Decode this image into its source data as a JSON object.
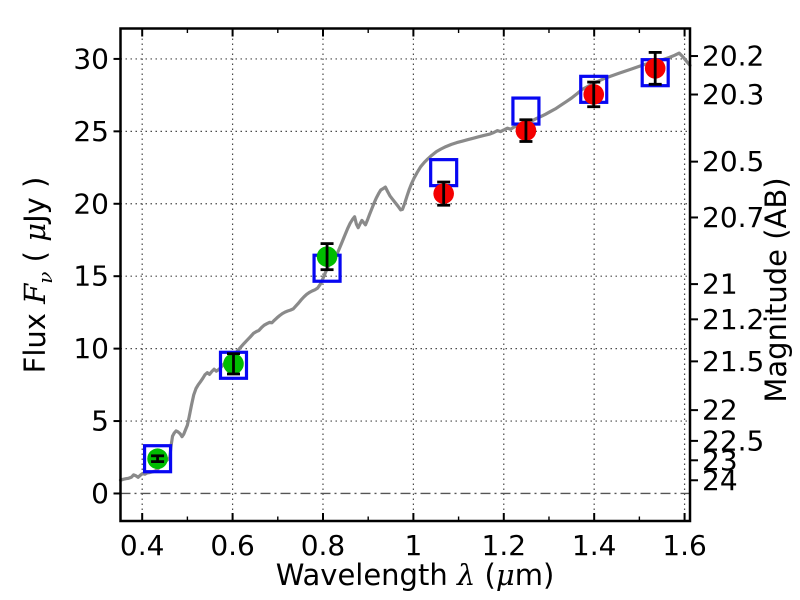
{
  "chart_data": {
    "type": "line",
    "title": "",
    "xlabel_parts": [
      [
        "Wavelength ",
        "text"
      ],
      [
        "λ",
        "math"
      ],
      [
        " (",
        "text"
      ],
      [
        "μ",
        "math"
      ],
      [
        "m)",
        "text"
      ]
    ],
    "ylabel_left_parts": [
      [
        "Flux ",
        "text"
      ],
      [
        "F",
        "math"
      ],
      [
        "ν",
        "mathsub"
      ],
      [
        " ( ",
        "text"
      ],
      [
        "μ",
        "math"
      ],
      [
        "Jy )",
        "text"
      ]
    ],
    "ylabel_right": "Magnitude (AB)",
    "xlim": [
      0.352,
      1.612
    ],
    "ylim_flux": [
      -1.9,
      32.1
    ],
    "x_tick_values": [
      0.4,
      0.6,
      0.8,
      1.0,
      1.2,
      1.4,
      1.6
    ],
    "x_tick_labels": [
      "0.4",
      "0.6",
      "0.8",
      "1",
      "1.2",
      "1.4",
      "1.6"
    ],
    "x_minor_tick_values": [
      0.5,
      0.7,
      0.9,
      1.1,
      1.3,
      1.5
    ],
    "y_tick_values": [
      0,
      5,
      10,
      15,
      20,
      25,
      30
    ],
    "y_tick_labels": [
      "0",
      "5",
      "10",
      "15",
      "20",
      "25",
      "30"
    ],
    "mag_tick_values": [
      20.2,
      20.3,
      20.5,
      20.7,
      21,
      21.2,
      21.5,
      22,
      22.5,
      23,
      24
    ],
    "mag_tick_labels": [
      "20.2",
      "20.3",
      "20.5",
      "20.7",
      "21",
      "21.2",
      "21.5",
      "22",
      "22.5",
      "23",
      "24"
    ],
    "ab_zeropoint": 23.9,
    "grid": true,
    "zero_line_flux": 0,
    "colors": {
      "spectrum": "#8a8a8a",
      "observed_optical": "#00bd00",
      "observed_ir": "#f40000",
      "model": "#0707f2",
      "errorbar": "#000000",
      "grid": "#4a4a4a",
      "axis": "#000000"
    },
    "series": [
      {
        "name": "model spectrum",
        "kind": "line",
        "color_key": "spectrum",
        "points": [
          [
            0.352,
            0.92
          ],
          [
            0.358,
            0.98
          ],
          [
            0.364,
            1.02
          ],
          [
            0.37,
            1.05
          ],
          [
            0.376,
            1.12
          ],
          [
            0.381,
            1.28
          ],
          [
            0.386,
            1.22
          ],
          [
            0.391,
            1.12
          ],
          [
            0.396,
            1.26
          ],
          [
            0.401,
            1.38
          ],
          [
            0.406,
            1.33
          ],
          [
            0.411,
            1.42
          ],
          [
            0.417,
            1.45
          ],
          [
            0.423,
            1.5
          ],
          [
            0.429,
            1.55
          ],
          [
            0.434,
            1.68
          ],
          [
            0.44,
            1.88
          ],
          [
            0.446,
            2.05
          ],
          [
            0.452,
            2.22
          ],
          [
            0.457,
            2.35
          ],
          [
            0.461,
            2.5
          ],
          [
            0.464,
            3.3
          ],
          [
            0.467,
            3.95
          ],
          [
            0.471,
            4.18
          ],
          [
            0.475,
            4.32
          ],
          [
            0.479,
            4.26
          ],
          [
            0.484,
            4.12
          ],
          [
            0.488,
            3.92
          ],
          [
            0.492,
            4.1
          ],
          [
            0.496,
            4.42
          ],
          [
            0.5,
            4.72
          ],
          [
            0.504,
            5.3
          ],
          [
            0.509,
            6.1
          ],
          [
            0.514,
            6.8
          ],
          [
            0.519,
            7.25
          ],
          [
            0.524,
            7.5
          ],
          [
            0.529,
            7.72
          ],
          [
            0.534,
            7.95
          ],
          [
            0.539,
            8.2
          ],
          [
            0.544,
            8.34
          ],
          [
            0.549,
            8.22
          ],
          [
            0.554,
            8.42
          ],
          [
            0.559,
            8.58
          ],
          [
            0.564,
            8.44
          ],
          [
            0.569,
            8.55
          ],
          [
            0.574,
            8.7
          ],
          [
            0.58,
            8.92
          ],
          [
            0.586,
            9.1
          ],
          [
            0.592,
            9.28
          ],
          [
            0.598,
            9.42
          ],
          [
            0.604,
            9.6
          ],
          [
            0.611,
            9.85
          ],
          [
            0.618,
            10.1
          ],
          [
            0.625,
            10.35
          ],
          [
            0.632,
            10.58
          ],
          [
            0.639,
            10.8
          ],
          [
            0.646,
            11.05
          ],
          [
            0.653,
            11.18
          ],
          [
            0.658,
            11.25
          ],
          [
            0.664,
            11.45
          ],
          [
            0.67,
            11.62
          ],
          [
            0.676,
            11.72
          ],
          [
            0.682,
            11.82
          ],
          [
            0.687,
            11.78
          ],
          [
            0.692,
            11.95
          ],
          [
            0.698,
            12.12
          ],
          [
            0.704,
            12.28
          ],
          [
            0.71,
            12.42
          ],
          [
            0.716,
            12.52
          ],
          [
            0.722,
            12.6
          ],
          [
            0.728,
            12.66
          ],
          [
            0.734,
            12.74
          ],
          [
            0.74,
            12.95
          ],
          [
            0.746,
            13.15
          ],
          [
            0.752,
            13.38
          ],
          [
            0.758,
            13.58
          ],
          [
            0.764,
            13.75
          ],
          [
            0.77,
            13.88
          ],
          [
            0.776,
            13.98
          ],
          [
            0.782,
            14.06
          ],
          [
            0.788,
            14.18
          ],
          [
            0.794,
            14.45
          ],
          [
            0.8,
            14.85
          ],
          [
            0.806,
            15.3
          ],
          [
            0.812,
            15.7
          ],
          [
            0.818,
            15.92
          ],
          [
            0.824,
            16.1
          ],
          [
            0.83,
            16.45
          ],
          [
            0.836,
            16.9
          ],
          [
            0.842,
            17.35
          ],
          [
            0.848,
            17.8
          ],
          [
            0.854,
            18.25
          ],
          [
            0.86,
            18.65
          ],
          [
            0.866,
            18.95
          ],
          [
            0.87,
            19.1
          ],
          [
            0.874,
            18.6
          ],
          [
            0.878,
            18.35
          ],
          [
            0.882,
            18.62
          ],
          [
            0.886,
            18.85
          ],
          [
            0.89,
            18.7
          ],
          [
            0.894,
            18.55
          ],
          [
            0.898,
            18.85
          ],
          [
            0.903,
            19.25
          ],
          [
            0.908,
            19.65
          ],
          [
            0.913,
            20.05
          ],
          [
            0.918,
            20.4
          ],
          [
            0.923,
            20.7
          ],
          [
            0.928,
            20.95
          ],
          [
            0.933,
            21.05
          ],
          [
            0.938,
            21.15
          ],
          [
            0.943,
            20.85
          ],
          [
            0.948,
            20.55
          ],
          [
            0.953,
            20.35
          ],
          [
            0.958,
            20.15
          ],
          [
            0.963,
            19.95
          ],
          [
            0.968,
            19.75
          ],
          [
            0.972,
            19.58
          ],
          [
            0.976,
            19.62
          ],
          [
            0.981,
            20.05
          ],
          [
            0.986,
            20.55
          ],
          [
            0.991,
            21.0
          ],
          [
            0.996,
            21.4
          ],
          [
            1.002,
            21.8
          ],
          [
            1.009,
            22.2
          ],
          [
            1.016,
            22.55
          ],
          [
            1.024,
            22.85
          ],
          [
            1.032,
            23.1
          ],
          [
            1.041,
            23.35
          ],
          [
            1.051,
            23.6
          ],
          [
            1.061,
            23.78
          ],
          [
            1.072,
            23.95
          ],
          [
            1.084,
            24.1
          ],
          [
            1.096,
            24.22
          ],
          [
            1.108,
            24.32
          ],
          [
            1.12,
            24.42
          ],
          [
            1.132,
            24.52
          ],
          [
            1.144,
            24.62
          ],
          [
            1.156,
            24.72
          ],
          [
            1.168,
            24.8
          ],
          [
            1.178,
            24.92
          ],
          [
            1.186,
            25.05
          ],
          [
            1.193,
            24.98
          ],
          [
            1.2,
            25.1
          ],
          [
            1.208,
            25.22
          ],
          [
            1.215,
            25.15
          ],
          [
            1.222,
            25.28
          ],
          [
            1.23,
            25.38
          ],
          [
            1.238,
            25.45
          ],
          [
            1.246,
            25.52
          ],
          [
            1.254,
            25.6
          ],
          [
            1.262,
            25.72
          ],
          [
            1.272,
            25.88
          ],
          [
            1.282,
            26.02
          ],
          [
            1.292,
            26.18
          ],
          [
            1.302,
            26.35
          ],
          [
            1.314,
            26.55
          ],
          [
            1.326,
            26.8
          ],
          [
            1.338,
            27.05
          ],
          [
            1.35,
            27.3
          ],
          [
            1.362,
            27.6
          ],
          [
            1.374,
            27.9
          ],
          [
            1.386,
            28.1
          ],
          [
            1.398,
            28.3
          ],
          [
            1.412,
            28.5
          ],
          [
            1.426,
            28.7
          ],
          [
            1.44,
            28.85
          ],
          [
            1.454,
            29.0
          ],
          [
            1.468,
            29.15
          ],
          [
            1.482,
            29.3
          ],
          [
            1.496,
            29.45
          ],
          [
            1.51,
            29.6
          ],
          [
            1.524,
            29.72
          ],
          [
            1.538,
            29.85
          ],
          [
            1.552,
            29.95
          ],
          [
            1.566,
            30.1
          ],
          [
            1.578,
            30.25
          ],
          [
            1.588,
            30.4
          ],
          [
            1.596,
            30.15
          ],
          [
            1.604,
            29.85
          ],
          [
            1.612,
            29.55
          ]
        ]
      },
      {
        "name": "model photometry",
        "kind": "open-square",
        "color_key": "model",
        "points": [
          [
            0.434,
            2.4
          ],
          [
            0.602,
            8.85
          ],
          [
            0.809,
            15.55
          ],
          [
            1.067,
            22.15
          ],
          [
            1.249,
            26.4
          ],
          [
            1.399,
            27.9
          ],
          [
            1.535,
            29.05
          ]
        ]
      },
      {
        "name": "observed photometry optical",
        "kind": "circle",
        "color_key": "observed_optical",
        "points": [
          [
            0.434,
            2.4,
            0.2
          ],
          [
            0.602,
            8.95,
            0.7
          ],
          [
            0.809,
            16.35,
            0.9
          ]
        ]
      },
      {
        "name": "observed photometry near-infrared",
        "kind": "circle",
        "color_key": "observed_ir",
        "points": [
          [
            1.067,
            20.7,
            0.8
          ],
          [
            1.249,
            25.05,
            0.75
          ],
          [
            1.399,
            27.55,
            0.85
          ],
          [
            1.535,
            29.35,
            1.1
          ]
        ]
      }
    ]
  }
}
